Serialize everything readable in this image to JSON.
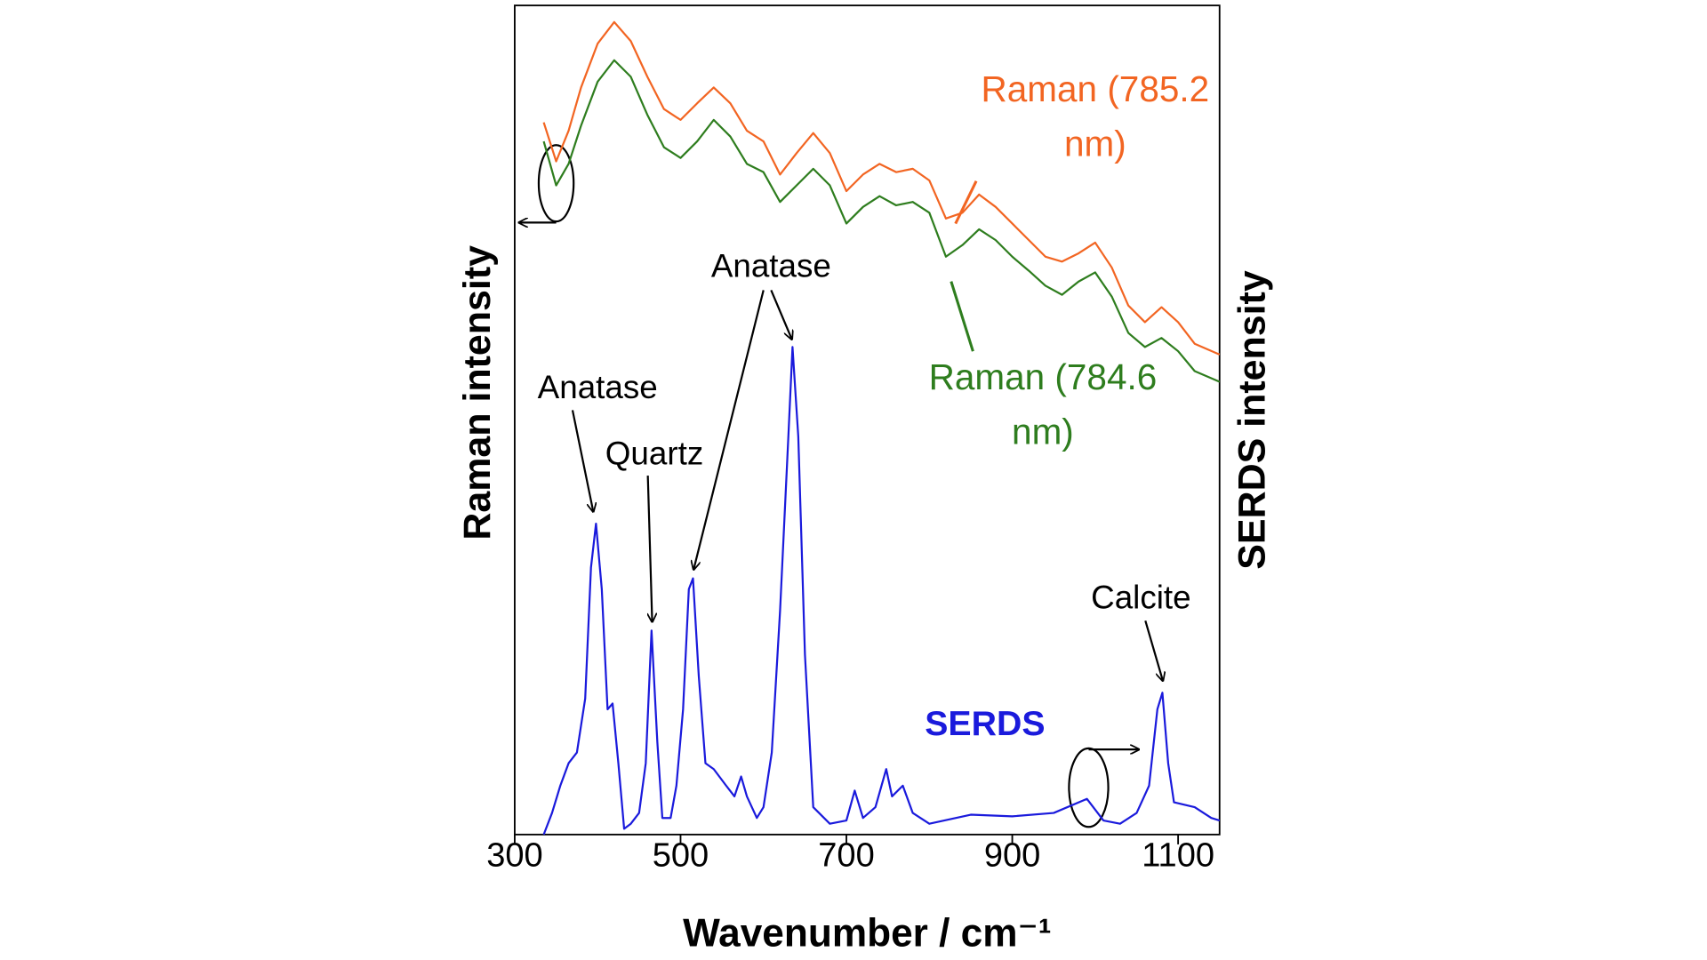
{
  "chart_data": {
    "type": "line",
    "x_label": "Wavenumber / cm⁻¹",
    "y_label": "Raman intensity",
    "y2_label": "SERDS intensity",
    "xlim": [
      300,
      1150
    ],
    "xticks": [
      300,
      500,
      700,
      900,
      1100
    ],
    "ylim": [
      0,
      100
    ],
    "y2lim": [
      0,
      100
    ],
    "annotations": [
      "Anatase",
      "Quartz",
      "Anatase",
      "Calcite"
    ],
    "series": [
      {
        "name": "Raman (785.2 nm)",
        "color": "#f26522",
        "x": [
          335,
          350,
          365,
          380,
          400,
          420,
          440,
          460,
          480,
          500,
          520,
          540,
          560,
          580,
          600,
          620,
          640,
          660,
          680,
          700,
          720,
          740,
          760,
          780,
          800,
          820,
          840,
          860,
          880,
          900,
          920,
          940,
          960,
          980,
          1000,
          1020,
          1040,
          1060,
          1080,
          1100,
          1120,
          1150
        ],
        "values": [
          85.9,
          81.2,
          84.9,
          90.1,
          95.4,
          98.0,
          95.7,
          91.4,
          87.5,
          86.2,
          88.2,
          90.1,
          88.2,
          84.9,
          83.6,
          79.6,
          82.2,
          84.6,
          82.2,
          77.6,
          79.6,
          80.9,
          79.9,
          80.3,
          78.9,
          74.3,
          75.0,
          77.2,
          75.7,
          73.7,
          71.7,
          69.7,
          69.1,
          70.1,
          71.4,
          68.4,
          63.8,
          61.8,
          63.6,
          61.8,
          59.2,
          57.9
        ]
      },
      {
        "name": "Raman (784.6 nm)",
        "color": "#2e7d1e",
        "x": [
          335,
          350,
          365,
          380,
          400,
          420,
          440,
          460,
          480,
          500,
          520,
          540,
          560,
          580,
          600,
          620,
          640,
          660,
          680,
          700,
          720,
          740,
          760,
          780,
          800,
          820,
          840,
          860,
          880,
          900,
          920,
          940,
          960,
          980,
          1000,
          1020,
          1040,
          1060,
          1080,
          1100,
          1120,
          1150
        ],
        "values": [
          83.6,
          78.3,
          80.9,
          85.5,
          90.8,
          93.4,
          91.4,
          86.8,
          82.9,
          81.6,
          83.6,
          86.2,
          84.2,
          80.9,
          79.9,
          76.3,
          78.3,
          80.3,
          78.3,
          73.7,
          75.7,
          77.0,
          75.9,
          76.3,
          75.0,
          69.7,
          71.1,
          73.0,
          71.7,
          69.7,
          68.0,
          66.2,
          65.1,
          66.7,
          67.8,
          64.9,
          60.5,
          58.8,
          59.9,
          58.3,
          55.9,
          54.6
        ]
      },
      {
        "name": "SERDS",
        "color": "#1a1adc",
        "axis": "y2",
        "x": [
          335,
          345,
          355,
          365,
          375,
          385,
          392,
          398,
          405,
          412,
          418,
          425,
          432,
          440,
          450,
          458,
          465,
          472,
          478,
          488,
          495,
          503,
          510,
          515,
          522,
          530,
          540,
          555,
          565,
          573,
          580,
          592,
          600,
          610,
          620,
          630,
          635,
          642,
          650,
          660,
          680,
          700,
          710,
          720,
          735,
          748,
          755,
          768,
          780,
          800,
          850,
          900,
          950,
          990,
          1010,
          1030,
          1050,
          1065,
          1075,
          1081,
          1088,
          1095,
          1120,
          1140,
          1150
        ],
        "values": [
          0,
          2.6,
          5.9,
          8.6,
          9.9,
          16.4,
          32.2,
          37.5,
          29.6,
          15.1,
          15.8,
          8.6,
          0.7,
          1.3,
          2.6,
          8.6,
          24.6,
          11.2,
          2.0,
          2.0,
          5.9,
          15.1,
          29.6,
          30.9,
          19.1,
          8.6,
          7.9,
          5.9,
          4.6,
          7.0,
          4.6,
          2.0,
          3.3,
          9.9,
          27.0,
          48.0,
          58.8,
          48.0,
          21.7,
          3.3,
          1.3,
          1.7,
          5.3,
          2.0,
          3.3,
          7.9,
          4.6,
          5.9,
          2.6,
          1.3,
          2.4,
          2.2,
          2.6,
          4.3,
          1.7,
          1.3,
          2.6,
          5.9,
          15.1,
          17.1,
          8.6,
          3.9,
          3.3,
          2.0,
          1.7
        ]
      }
    ]
  }
}
